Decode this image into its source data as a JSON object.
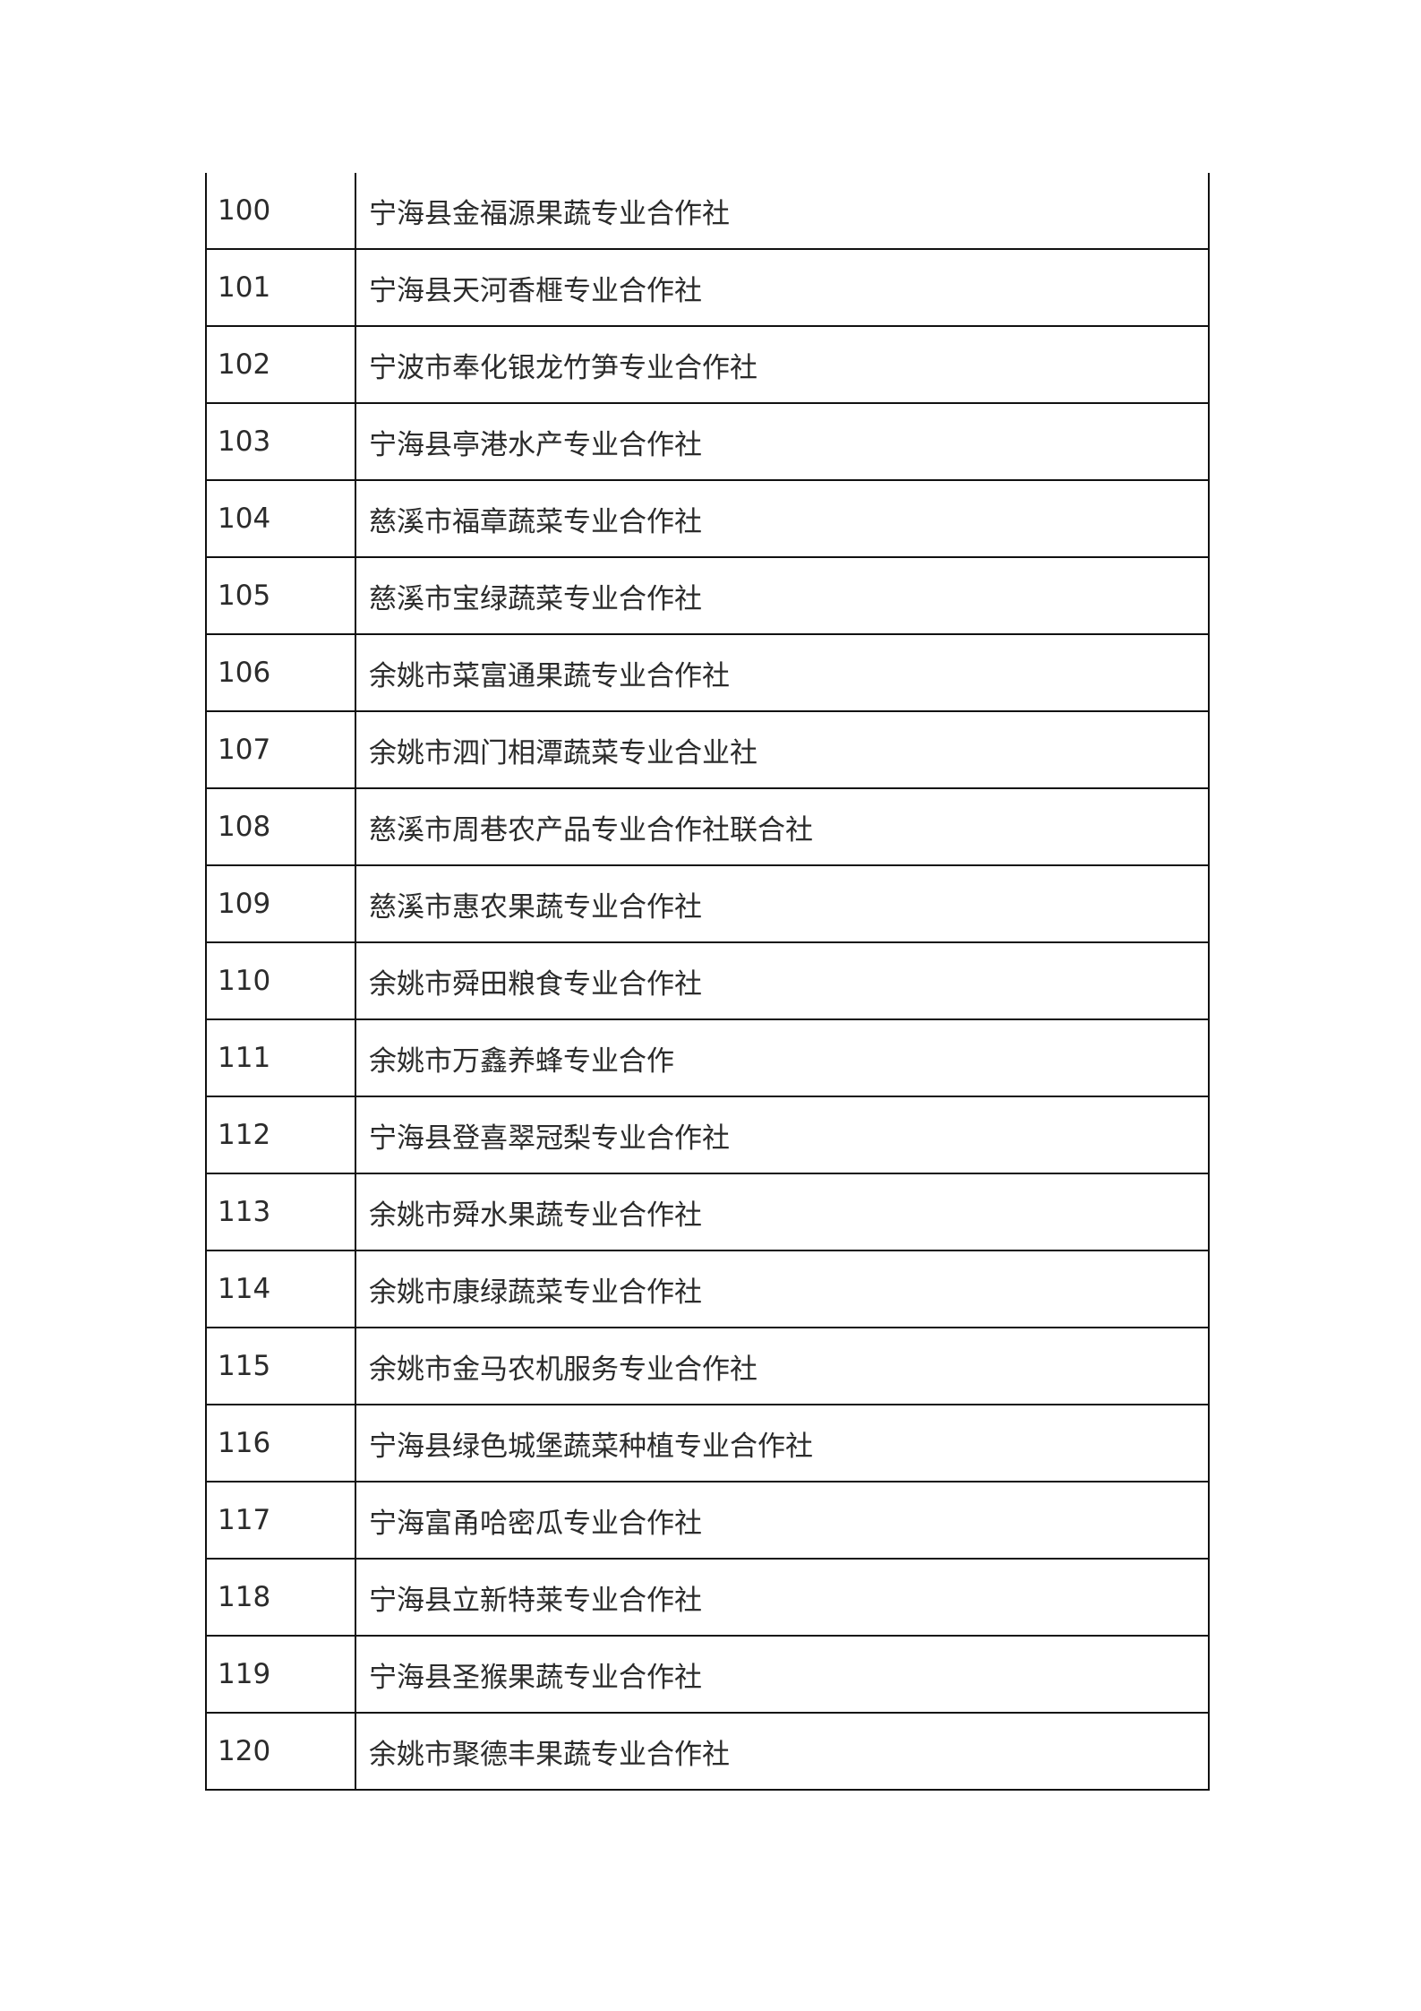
{
  "rows": [
    {
      "no": "100",
      "name": "宁海县金福源果蔬专业合作社"
    },
    {
      "no": "101",
      "name": "宁海县天河香榧专业合作社"
    },
    {
      "no": "102",
      "name": "宁波市奉化银龙竹笋专业合作社"
    },
    {
      "no": "103",
      "name": "宁海县亭港水产专业合作社"
    },
    {
      "no": "104",
      "name": "慈溪市福章蔬菜专业合作社"
    },
    {
      "no": "105",
      "name": "慈溪市宝绿蔬菜专业合作社"
    },
    {
      "no": "106",
      "name": "余姚市菜富通果蔬专业合作社"
    },
    {
      "no": "107",
      "name": "余姚市泗门相潭蔬菜专业合业社"
    },
    {
      "no": "108",
      "name": "慈溪市周巷农产品专业合作社联合社"
    },
    {
      "no": "109",
      "name": "慈溪市惠农果蔬专业合作社"
    },
    {
      "no": "110",
      "name": "余姚市舜田粮食专业合作社"
    },
    {
      "no": "111",
      "name": "余姚市万鑫养蜂专业合作"
    },
    {
      "no": "112",
      "name": "宁海县登喜翠冠梨专业合作社"
    },
    {
      "no": "113",
      "name": "余姚市舜水果蔬专业合作社"
    },
    {
      "no": "114",
      "name": "余姚市康绿蔬菜专业合作社"
    },
    {
      "no": "115",
      "name": "余姚市金马农机服务专业合作社"
    },
    {
      "no": "116",
      "name": "宁海县绿色城堡蔬菜种植专业合作社"
    },
    {
      "no": "117",
      "name": "宁海富甬哈密瓜专业合作社"
    },
    {
      "no": "118",
      "name": "宁海县立新特莱专业合作社"
    },
    {
      "no": "119",
      "name": "宁海县圣猴果蔬专业合作社"
    },
    {
      "no": "120",
      "name": "余姚市聚德丰果蔬专业合作社"
    }
  ]
}
